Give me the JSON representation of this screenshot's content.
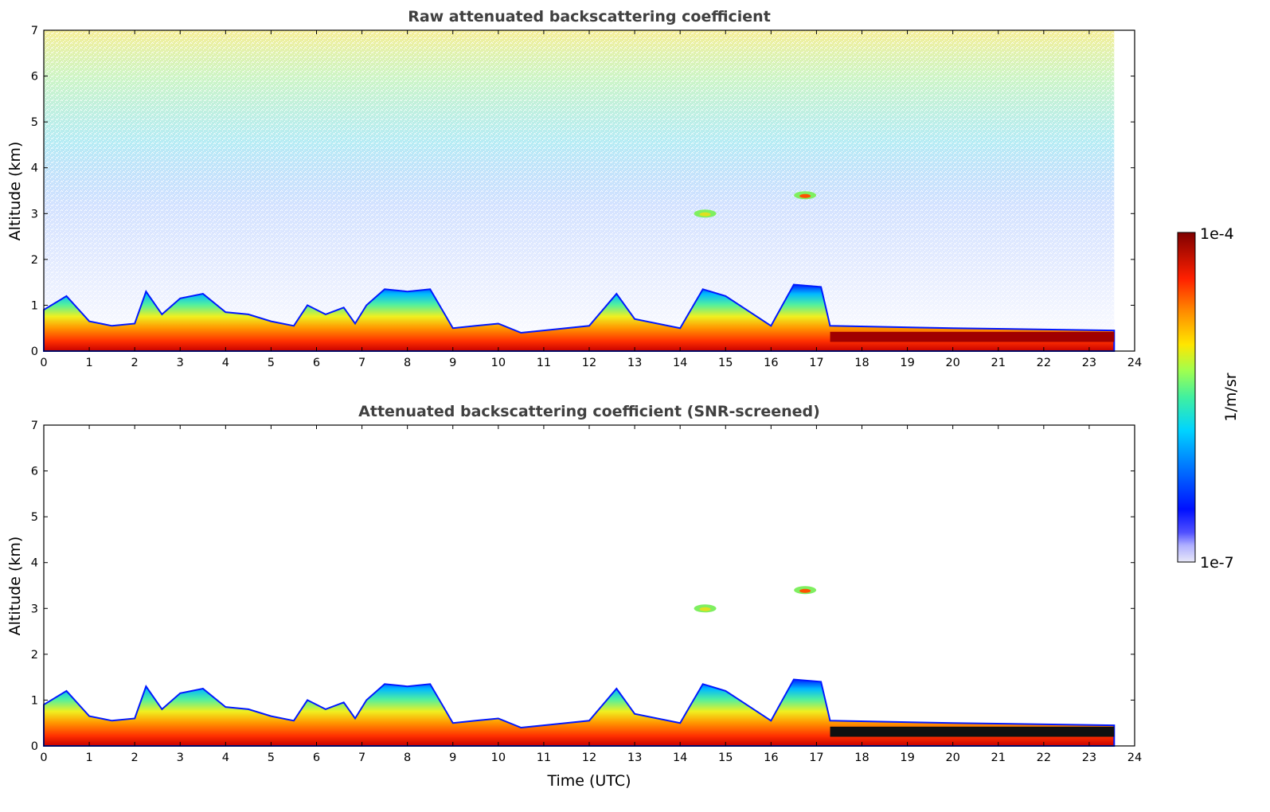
{
  "chart_data": [
    {
      "type": "heatmap",
      "title": "Raw attenuated backscattering coefficient",
      "xlabel": "",
      "ylabel": "Altitude (km)",
      "xlim": [
        0,
        24
      ],
      "ylim": [
        0,
        7
      ],
      "xticks": [
        "0",
        "1",
        "2",
        "3",
        "4",
        "5",
        "6",
        "7",
        "8",
        "9",
        "10",
        "11",
        "12",
        "13",
        "14",
        "15",
        "16",
        "17",
        "18",
        "19",
        "20",
        "21",
        "22",
        "23",
        "24"
      ],
      "yticks": [
        "0",
        "1",
        "2",
        "3",
        "4",
        "5",
        "6",
        "7"
      ],
      "data_end_time": 23.55,
      "boundary_layer_top_km": [
        [
          0,
          0.9
        ],
        [
          0.5,
          1.2
        ],
        [
          1.0,
          0.65
        ],
        [
          1.5,
          0.55
        ],
        [
          2.0,
          0.6
        ],
        [
          2.25,
          1.3
        ],
        [
          2.6,
          0.8
        ],
        [
          3.0,
          1.15
        ],
        [
          3.5,
          1.25
        ],
        [
          4.0,
          0.85
        ],
        [
          4.5,
          0.8
        ],
        [
          5.0,
          0.65
        ],
        [
          5.5,
          0.55
        ],
        [
          5.8,
          1.0
        ],
        [
          6.2,
          0.8
        ],
        [
          6.6,
          0.95
        ],
        [
          6.85,
          0.6
        ],
        [
          7.1,
          1.0
        ],
        [
          7.5,
          1.35
        ],
        [
          8.0,
          1.3
        ],
        [
          8.5,
          1.35
        ],
        [
          9.0,
          0.5
        ],
        [
          9.5,
          0.55
        ],
        [
          10.0,
          0.6
        ],
        [
          10.5,
          0.4
        ],
        [
          11.0,
          0.45
        ],
        [
          12.0,
          0.55
        ],
        [
          12.6,
          1.25
        ],
        [
          13.0,
          0.7
        ],
        [
          14.0,
          0.5
        ],
        [
          14.5,
          1.35
        ],
        [
          15.0,
          1.2
        ],
        [
          16.0,
          0.55
        ],
        [
          16.5,
          1.45
        ],
        [
          17.1,
          1.4
        ],
        [
          17.3,
          0.55
        ],
        [
          20.0,
          0.5
        ],
        [
          23.55,
          0.45
        ]
      ],
      "elevated_layers": [
        {
          "time": 14.55,
          "altitude_km": 3.0
        },
        {
          "time": 16.75,
          "altitude_km": 3.4
        }
      ],
      "note": "log color scale; noisy background signal above boundary layer"
    },
    {
      "type": "heatmap",
      "title": "Attenuated backscattering coefficient (SNR-screened)",
      "xlabel": "Time (UTC)",
      "ylabel": "Altitude (km)",
      "xlim": [
        0,
        24
      ],
      "ylim": [
        0,
        7
      ],
      "xticks": [
        "0",
        "1",
        "2",
        "3",
        "4",
        "5",
        "6",
        "7",
        "8",
        "9",
        "10",
        "11",
        "12",
        "13",
        "14",
        "15",
        "16",
        "17",
        "18",
        "19",
        "20",
        "21",
        "22",
        "23",
        "24"
      ],
      "yticks": [
        "0",
        "1",
        "2",
        "3",
        "4",
        "5",
        "6",
        "7"
      ],
      "data_end_time": 23.55,
      "elevated_layers": [
        {
          "time": 14.55,
          "altitude_km": 3.0
        },
        {
          "time": 16.75,
          "altitude_km": 3.4
        }
      ],
      "note": "same profile with low-SNR background removed"
    }
  ],
  "colorbar": {
    "label": "1/m/sr",
    "max_label": "1e-4",
    "min_label": "1e-7",
    "scale": "log",
    "range": [
      1e-07,
      0.0001
    ]
  }
}
